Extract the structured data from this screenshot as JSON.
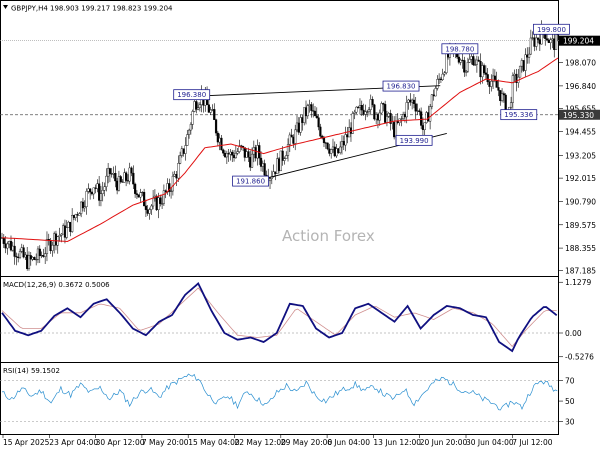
{
  "chart_data": [
    {
      "type": "candlestick",
      "title": "GBPJPY,H4  198.903 199.217 198.823 199.204",
      "watermark": "Action Forex",
      "ylim": [
        187.0,
        200.6
      ],
      "y_ticks": [
        "199.204",
        "198.070",
        "196.840",
        "195.655",
        "195.330",
        "194.455",
        "193.205",
        "192.015",
        "190.790",
        "189.575",
        "188.355",
        "187.185"
      ],
      "y_tick_values": [
        199.204,
        198.07,
        196.84,
        195.655,
        195.33,
        194.455,
        193.205,
        192.015,
        190.79,
        189.575,
        188.355,
        187.185
      ],
      "x_labels": [
        "15 Apr 2025",
        "23 Apr 04:00",
        "30 Apr 12:00",
        "7 May 20:00",
        "15 May 04:00",
        "22 May 12:00",
        "29 May 20:00",
        "6 Jun 04:00",
        "13 Jun 12:00",
        "20 Jun 20:00",
        "30 Jun 04:00",
        "7 Jul 12:00"
      ],
      "current_price": 199.204,
      "support_level": 195.33,
      "price_path": [
        [
          0,
          188.9
        ],
        [
          4,
          188.3
        ],
        [
          8,
          187.6
        ],
        [
          12,
          188.0
        ],
        [
          16,
          188.9
        ],
        [
          20,
          189.3
        ],
        [
          24,
          190.6
        ],
        [
          28,
          191.7
        ],
        [
          30,
          191.1
        ],
        [
          33,
          192.3
        ],
        [
          36,
          191.6
        ],
        [
          39,
          192.2
        ],
        [
          42,
          191.1
        ],
        [
          45,
          190.5
        ],
        [
          48,
          190.8
        ],
        [
          51,
          191.4
        ],
        [
          54,
          192.6
        ],
        [
          57,
          194.4
        ],
        [
          59,
          196.0
        ],
        [
          61,
          196.3
        ],
        [
          64,
          195.4
        ],
        [
          66,
          194.3
        ],
        [
          68,
          193.5
        ],
        [
          70,
          193.2
        ],
        [
          73,
          193.5
        ],
        [
          76,
          193.0
        ],
        [
          78,
          193.4
        ],
        [
          80,
          192.6
        ],
        [
          82,
          192.2
        ],
        [
          85,
          192.9
        ],
        [
          87,
          193.6
        ],
        [
          90,
          194.4
        ],
        [
          92,
          195.2
        ],
        [
          94,
          195.7
        ],
        [
          96,
          195.0
        ],
        [
          98,
          194.3
        ],
        [
          100,
          193.7
        ],
        [
          102,
          193.1
        ],
        [
          104,
          193.7
        ],
        [
          106,
          194.4
        ],
        [
          108,
          195.3
        ],
        [
          110,
          195.6
        ],
        [
          112,
          196.0
        ],
        [
          114,
          195.4
        ],
        [
          116,
          195.6
        ],
        [
          118,
          195.1
        ],
        [
          120,
          194.5
        ],
        [
          122,
          195.0
        ],
        [
          124,
          195.9
        ],
        [
          126,
          196.1
        ],
        [
          128,
          195.2
        ],
        [
          129,
          194.3
        ],
        [
          130,
          195.2
        ],
        [
          132,
          196.5
        ],
        [
          134,
          197.3
        ],
        [
          136,
          198.3
        ],
        [
          138,
          198.6
        ],
        [
          140,
          198.4
        ],
        [
          142,
          197.8
        ],
        [
          144,
          198.4
        ],
        [
          146,
          197.7
        ],
        [
          148,
          197.5
        ],
        [
          150,
          197.0
        ],
        [
          152,
          196.6
        ],
        [
          154,
          195.7
        ],
        [
          155,
          195.4
        ],
        [
          156,
          196.9
        ],
        [
          158,
          197.4
        ],
        [
          160,
          198.2
        ],
        [
          162,
          199.1
        ],
        [
          164,
          199.4
        ],
        [
          166,
          199.7
        ],
        [
          168,
          199.0
        ],
        [
          170,
          199.2
        ]
      ],
      "ma_path": [
        [
          0,
          188.9
        ],
        [
          20,
          188.7
        ],
        [
          30,
          189.6
        ],
        [
          40,
          190.6
        ],
        [
          50,
          191.2
        ],
        [
          56,
          192.3
        ],
        [
          62,
          193.6
        ],
        [
          70,
          193.8
        ],
        [
          80,
          193.3
        ],
        [
          90,
          193.8
        ],
        [
          100,
          194.2
        ],
        [
          110,
          194.6
        ],
        [
          120,
          195.0
        ],
        [
          130,
          195.1
        ],
        [
          140,
          196.5
        ],
        [
          148,
          197.2
        ],
        [
          156,
          197.0
        ],
        [
          164,
          197.6
        ],
        [
          170,
          198.3
        ]
      ],
      "annotations": [
        {
          "text": "196.380",
          "x": 58,
          "y": 196.38
        },
        {
          "text": "191.860",
          "x": 76,
          "y": 191.86
        },
        {
          "text": "196.830",
          "x": 122,
          "y": 196.83
        },
        {
          "text": "193.990",
          "x": 126,
          "y": 193.99
        },
        {
          "text": "198.780",
          "x": 140,
          "y": 198.78
        },
        {
          "text": "195.336",
          "x": 158,
          "y": 195.336
        },
        {
          "text": "199.800",
          "x": 168,
          "y": 199.8
        }
      ],
      "trendlines": [
        {
          "x1": 59,
          "y1": 196.3,
          "x2": 134,
          "y2": 196.85
        },
        {
          "x1": 77,
          "y1": 191.85,
          "x2": 136,
          "y2": 194.35
        }
      ]
    },
    {
      "type": "line",
      "title": "MACD(12,26,9)  0.3672  0.5006",
      "ylim": [
        -0.6,
        1.2
      ],
      "y_ticks": [
        "1.1279",
        "0.00",
        "-0.5276"
      ],
      "y_tick_values": [
        1.1279,
        0.0,
        -0.5276
      ],
      "macd_path": [
        [
          0,
          0.45
        ],
        [
          4,
          0.05
        ],
        [
          8,
          -0.05
        ],
        [
          12,
          0.05
        ],
        [
          16,
          0.38
        ],
        [
          20,
          0.55
        ],
        [
          24,
          0.35
        ],
        [
          28,
          0.65
        ],
        [
          32,
          0.75
        ],
        [
          36,
          0.45
        ],
        [
          40,
          0.1
        ],
        [
          44,
          -0.05
        ],
        [
          48,
          0.25
        ],
        [
          52,
          0.4
        ],
        [
          56,
          0.85
        ],
        [
          60,
          1.1
        ],
        [
          64,
          0.5
        ],
        [
          68,
          0.0
        ],
        [
          72,
          -0.15
        ],
        [
          76,
          -0.1
        ],
        [
          80,
          -0.2
        ],
        [
          84,
          0.0
        ],
        [
          88,
          0.65
        ],
        [
          92,
          0.6
        ],
        [
          96,
          0.1
        ],
        [
          100,
          -0.1
        ],
        [
          104,
          0.0
        ],
        [
          108,
          0.55
        ],
        [
          112,
          0.65
        ],
        [
          116,
          0.45
        ],
        [
          120,
          0.25
        ],
        [
          124,
          0.6
        ],
        [
          128,
          0.1
        ],
        [
          132,
          0.4
        ],
        [
          136,
          0.6
        ],
        [
          140,
          0.55
        ],
        [
          144,
          0.4
        ],
        [
          148,
          0.35
        ],
        [
          152,
          -0.2
        ],
        [
          156,
          -0.4
        ],
        [
          158,
          -0.1
        ],
        [
          162,
          0.35
        ],
        [
          166,
          0.6
        ],
        [
          170,
          0.37
        ]
      ],
      "signal_path": [
        [
          0,
          0.5
        ],
        [
          6,
          0.1
        ],
        [
          12,
          0.1
        ],
        [
          18,
          0.45
        ],
        [
          24,
          0.45
        ],
        [
          30,
          0.65
        ],
        [
          36,
          0.55
        ],
        [
          42,
          0.05
        ],
        [
          48,
          0.2
        ],
        [
          54,
          0.6
        ],
        [
          60,
          1.0
        ],
        [
          66,
          0.45
        ],
        [
          72,
          -0.05
        ],
        [
          78,
          -0.1
        ],
        [
          84,
          -0.05
        ],
        [
          90,
          0.55
        ],
        [
          96,
          0.25
        ],
        [
          102,
          -0.05
        ],
        [
          108,
          0.4
        ],
        [
          114,
          0.6
        ],
        [
          120,
          0.35
        ],
        [
          126,
          0.45
        ],
        [
          132,
          0.3
        ],
        [
          138,
          0.55
        ],
        [
          144,
          0.45
        ],
        [
          150,
          0.2
        ],
        [
          156,
          -0.3
        ],
        [
          160,
          0.05
        ],
        [
          166,
          0.5
        ],
        [
          170,
          0.5
        ]
      ]
    },
    {
      "type": "line",
      "title": "RSI(14)  59.1502",
      "ylim": [
        20,
        85
      ],
      "y_ticks": [
        "70",
        "50",
        "30"
      ],
      "y_tick_values": [
        70,
        50,
        30
      ],
      "rsi_path": [
        [
          0,
          58
        ],
        [
          3,
          52
        ],
        [
          6,
          62
        ],
        [
          9,
          55
        ],
        [
          12,
          60
        ],
        [
          15,
          48
        ],
        [
          18,
          62
        ],
        [
          21,
          56
        ],
        [
          24,
          66
        ],
        [
          27,
          58
        ],
        [
          30,
          63
        ],
        [
          33,
          52
        ],
        [
          36,
          60
        ],
        [
          39,
          47
        ],
        [
          42,
          58
        ],
        [
          45,
          62
        ],
        [
          48,
          54
        ],
        [
          51,
          64
        ],
        [
          54,
          70
        ],
        [
          57,
          75
        ],
        [
          60,
          72
        ],
        [
          63,
          56
        ],
        [
          66,
          48
        ],
        [
          69,
          55
        ],
        [
          72,
          46
        ],
        [
          75,
          60
        ],
        [
          78,
          52
        ],
        [
          81,
          46
        ],
        [
          84,
          58
        ],
        [
          87,
          65
        ],
        [
          90,
          58
        ],
        [
          93,
          68
        ],
        [
          96,
          55
        ],
        [
          99,
          50
        ],
        [
          102,
          57
        ],
        [
          105,
          62
        ],
        [
          108,
          66
        ],
        [
          111,
          60
        ],
        [
          114,
          64
        ],
        [
          117,
          56
        ],
        [
          120,
          52
        ],
        [
          123,
          62
        ],
        [
          126,
          48
        ],
        [
          129,
          58
        ],
        [
          132,
          68
        ],
        [
          135,
          72
        ],
        [
          138,
          66
        ],
        [
          141,
          60
        ],
        [
          144,
          58
        ],
        [
          147,
          52
        ],
        [
          150,
          48
        ],
        [
          153,
          42
        ],
        [
          156,
          50
        ],
        [
          159,
          44
        ],
        [
          162,
          62
        ],
        [
          165,
          70
        ],
        [
          168,
          64
        ],
        [
          170,
          59
        ]
      ]
    }
  ]
}
